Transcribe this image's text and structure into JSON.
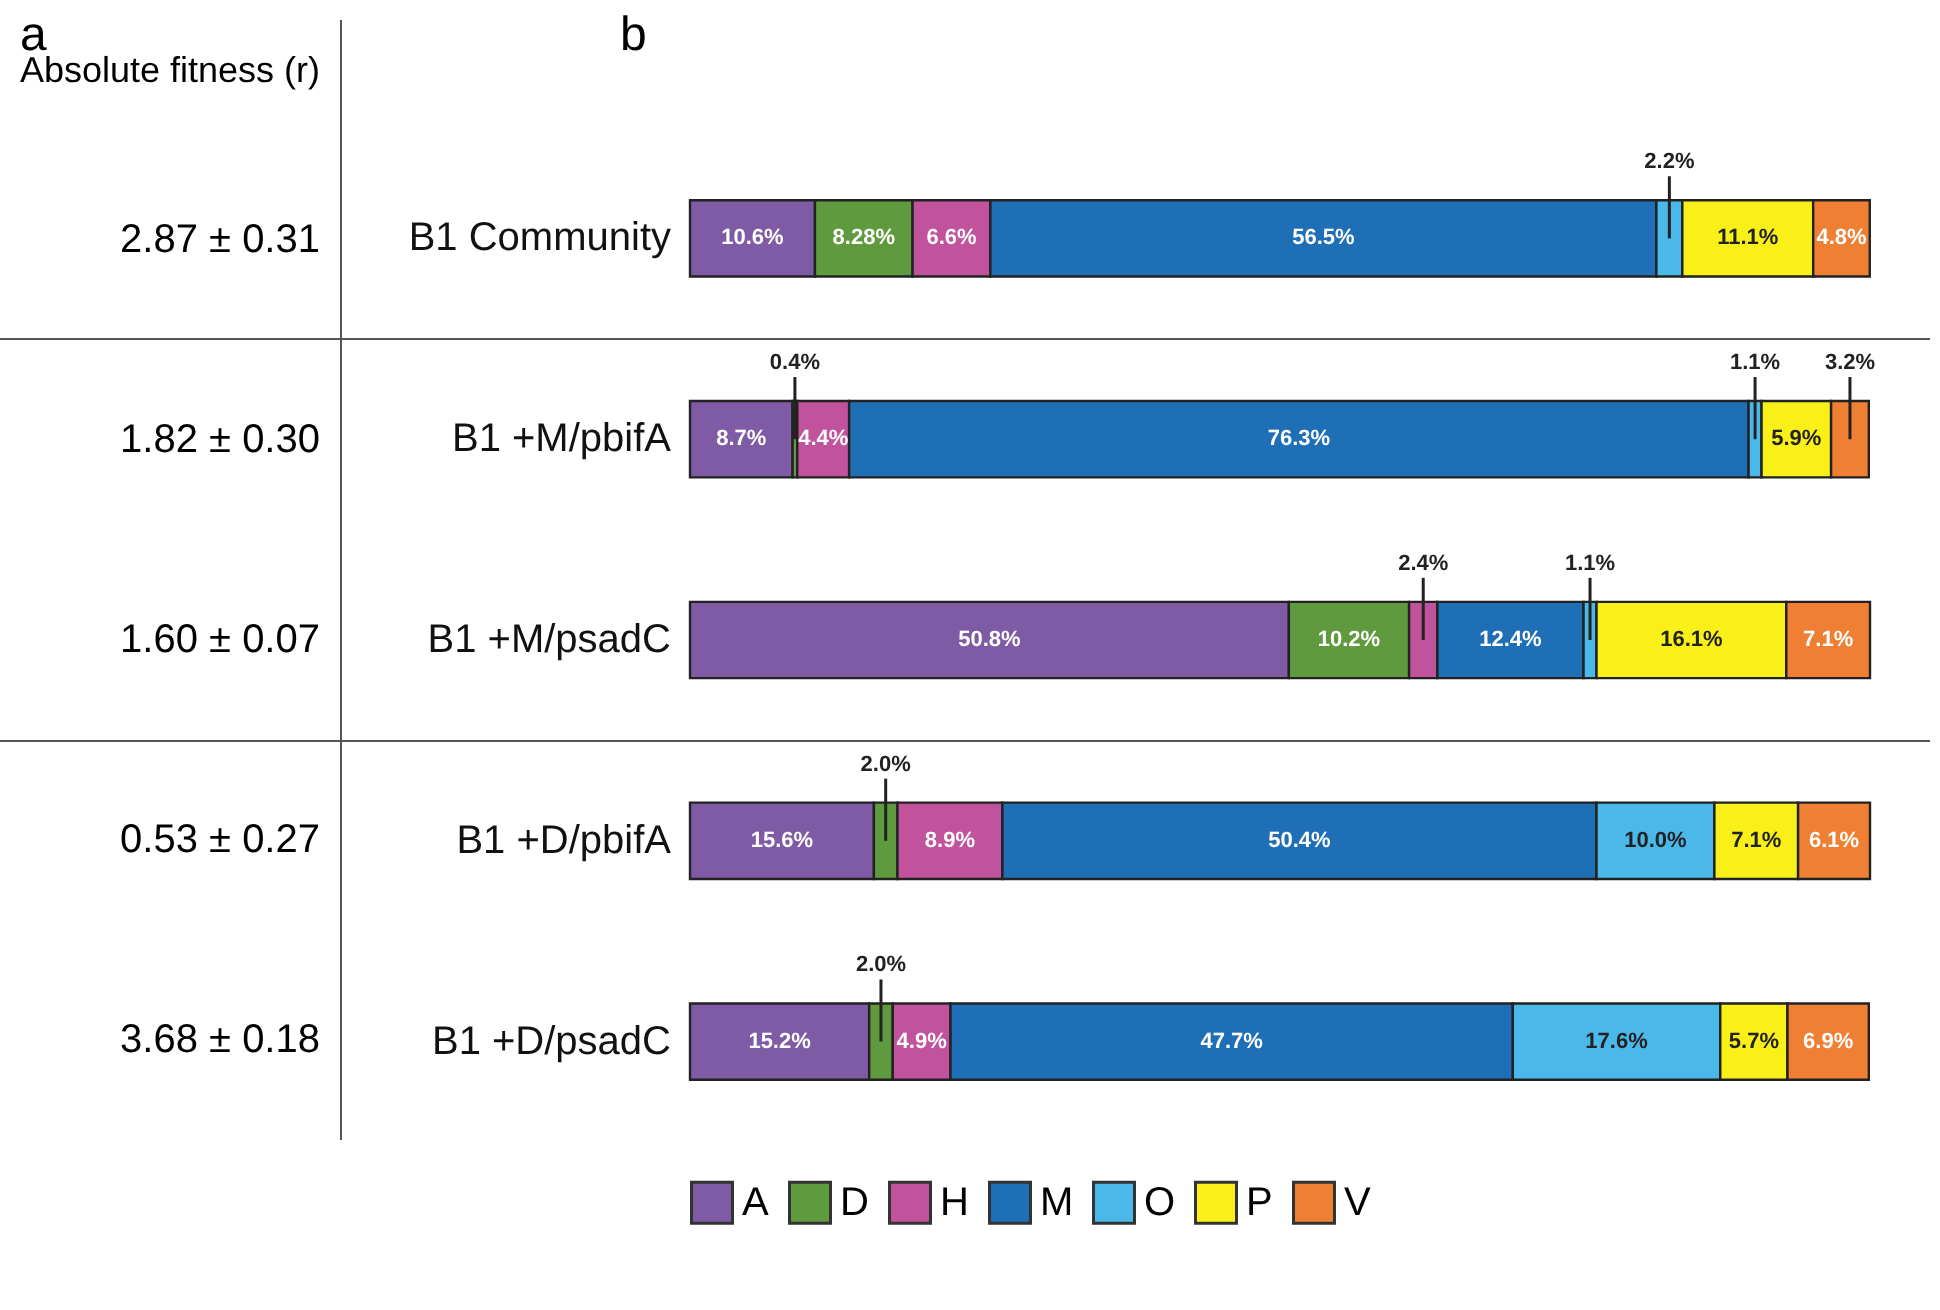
{
  "chart_data": [
    {
      "type": "other",
      "title": "Absolute fitness (r)",
      "annotations": [
        "a",
        "2.87 ± 0.31",
        "1.82 ± 0.30",
        "1.60 ± 0.07",
        "0.53 ± 0.27",
        "3.68 ± 0.18"
      ]
    },
    {
      "type": "bar",
      "orientation": "horizontal",
      "stacked": true,
      "legend": "bottom",
      "annotations": [
        "b"
      ],
      "categories": [
        "B1 Community",
        "B1 +M/pbifA",
        "B1 +M/psadC",
        "B1 +D/pbifA",
        "B1 +D/psadC"
      ],
      "series": [
        {
          "name": "A",
          "color": "#7f5ba6",
          "values": [
            10.6,
            8.7,
            50.8,
            15.6,
            15.2
          ],
          "value_labels": [
            "10.6%",
            "8.7%",
            "50.8%",
            "15.6%",
            "15.2%"
          ]
        },
        {
          "name": "D",
          "color": "#5f9a3f",
          "values": [
            8.28,
            0.4,
            10.2,
            2.0,
            2.0
          ],
          "value_labels": [
            "8.28%",
            "0.4%",
            "10.2%",
            "2.0%",
            "2.0%"
          ]
        },
        {
          "name": "H",
          "color": "#c1529c",
          "values": [
            6.6,
            4.4,
            2.4,
            8.9,
            4.9
          ],
          "value_labels": [
            "6.6%",
            "4.4%",
            "2.4%",
            "8.9%",
            "4.9%"
          ]
        },
        {
          "name": "M",
          "color": "#1f6fb6",
          "values": [
            56.5,
            76.3,
            12.4,
            50.4,
            47.7
          ],
          "value_labels": [
            "56.5%",
            "76.3%",
            "12.4%",
            "50.4%",
            "47.7%"
          ]
        },
        {
          "name": "O",
          "color": "#4bb8ea",
          "values": [
            2.2,
            1.1,
            1.1,
            10.0,
            17.6
          ],
          "value_labels": [
            "2.2%",
            "1.1%",
            "1.1%",
            "10.0%",
            "17.6%"
          ]
        },
        {
          "name": "P",
          "color": "#f8f018",
          "values": [
            11.1,
            5.9,
            16.1,
            7.1,
            5.7
          ],
          "value_labels": [
            "11.1%",
            "5.9%",
            "16.1%",
            "7.1%",
            "5.7%"
          ]
        },
        {
          "name": "V",
          "color": "#ef7f32",
          "values": [
            4.8,
            3.2,
            7.1,
            6.1,
            6.9
          ],
          "value_labels": [
            "4.8%",
            "3.2%",
            "7.1%",
            "6.1%",
            "6.9%"
          ]
        }
      ]
    }
  ]
}
